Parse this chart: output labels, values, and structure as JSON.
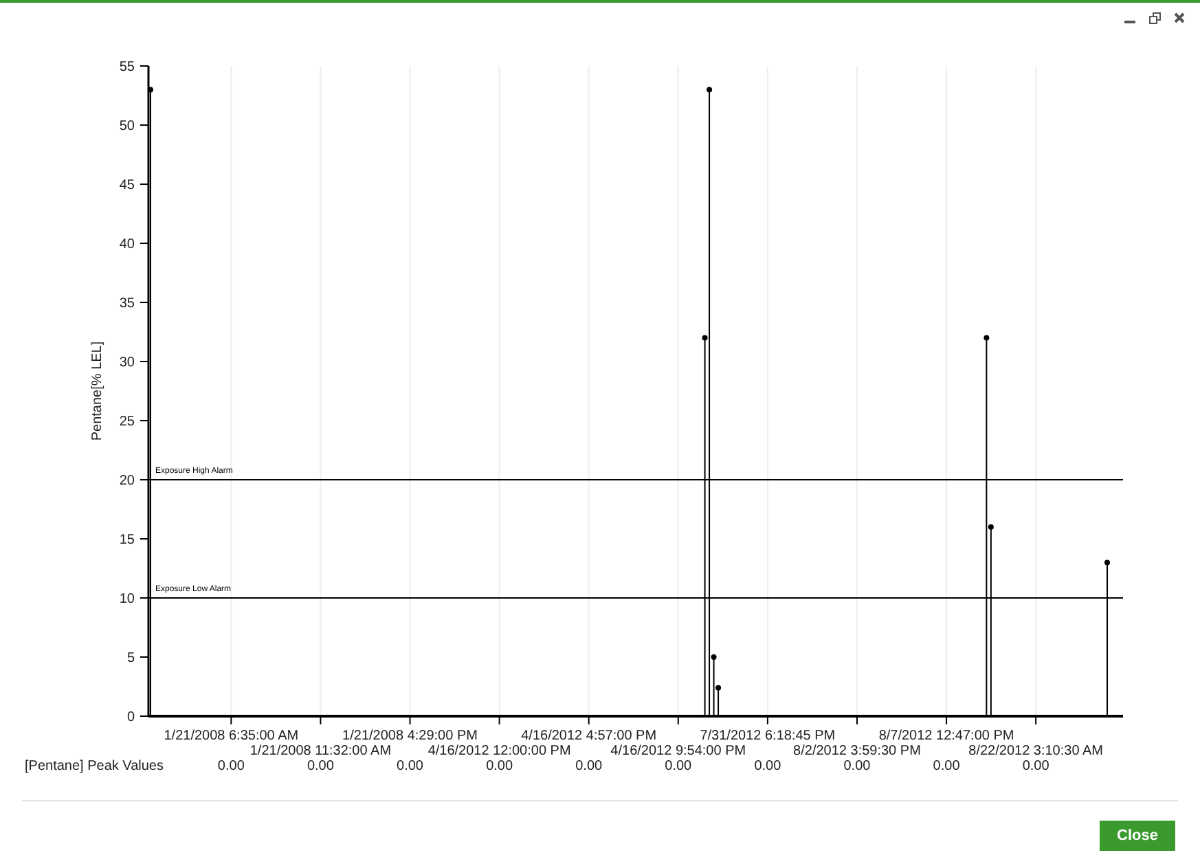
{
  "chart_data": {
    "type": "lollipop",
    "ylabel": "Pentane[% LEL]",
    "categories": [
      null,
      null,
      null,
      null,
      null,
      null,
      null,
      null,
      null,
      null,
      null,
      null,
      null,
      null,
      null,
      null,
      null,
      null,
      "1/21/2008 6:35:00 AM",
      null,
      null,
      null,
      null,
      null,
      null,
      null,
      null,
      null,
      null,
      null,
      null,
      null,
      null,
      null,
      null,
      null,
      null,
      null,
      "1/21/2008 11:32:00 AM",
      null,
      null,
      null,
      null,
      null,
      null,
      null,
      null,
      null,
      null,
      null,
      null,
      null,
      null,
      null,
      null,
      null,
      null,
      null,
      "1/21/2008 4:29:00 PM",
      null,
      null,
      null,
      null,
      null,
      null,
      null,
      null,
      null,
      null,
      null,
      null,
      null,
      null,
      null,
      null,
      null,
      null,
      null,
      "4/16/2012 12:00:00 PM",
      null,
      null,
      null,
      null,
      null,
      null,
      null,
      null,
      null,
      null,
      null,
      null,
      null,
      null,
      null,
      null,
      null,
      null,
      null,
      "4/16/2012 4:57:00 PM",
      null,
      null,
      null,
      null,
      null,
      null,
      null,
      null,
      null,
      null,
      null,
      null,
      null,
      null,
      null,
      null,
      null,
      null,
      null,
      "4/16/2012 9:54:00 PM",
      null,
      null,
      null,
      null,
      null,
      null,
      null,
      null,
      null,
      null,
      null,
      null,
      null,
      null,
      null,
      null,
      null,
      null,
      null,
      "7/31/2012 6:18:45 PM",
      null,
      null,
      null,
      null,
      null,
      null,
      null,
      null,
      null,
      null,
      null,
      null,
      null,
      null,
      null,
      null,
      null,
      null,
      null,
      "8/2/2012 3:59:30 PM",
      null,
      null,
      null,
      null,
      null,
      null,
      null,
      null,
      null,
      null,
      null,
      null,
      null,
      null,
      null,
      null,
      null,
      null,
      null,
      "8/7/2012 12:47:00 PM",
      null,
      null,
      null,
      null,
      null,
      null,
      null,
      null,
      null,
      null,
      null,
      null,
      null,
      null,
      null,
      null,
      null,
      null,
      null,
      "8/22/2012 3:10:30 AM",
      null,
      null,
      null,
      null,
      null,
      null,
      null,
      null,
      null,
      null,
      null,
      null,
      null,
      null,
      null,
      null,
      null,
      null,
      null
    ],
    "series": [
      {
        "color": "#000000",
        "values": [
          53,
          null,
          null,
          null,
          null,
          null,
          null,
          null,
          null,
          null,
          null,
          null,
          null,
          null,
          null,
          null,
          null,
          null,
          null,
          null,
          null,
          null,
          null,
          null,
          null,
          null,
          null,
          null,
          null,
          null,
          null,
          null,
          null,
          null,
          null,
          null,
          null,
          null,
          null,
          null,
          null,
          null,
          null,
          null,
          null,
          null,
          null,
          null,
          null,
          null,
          null,
          null,
          null,
          null,
          null,
          null,
          null,
          null,
          null,
          null,
          null,
          null,
          null,
          null,
          null,
          null,
          null,
          null,
          null,
          null,
          null,
          null,
          null,
          null,
          null,
          null,
          null,
          null,
          null,
          null,
          null,
          null,
          null,
          null,
          null,
          null,
          null,
          null,
          null,
          null,
          null,
          null,
          null,
          null,
          null,
          null,
          null,
          null,
          null,
          null,
          null,
          null,
          null,
          null,
          null,
          null,
          null,
          null,
          null,
          null,
          null,
          null,
          null,
          null,
          null,
          null,
          null,
          null,
          null,
          null,
          null,
          null,
          null,
          null,
          32,
          53,
          5,
          2.4,
          null,
          null,
          null,
          null,
          null,
          null,
          null,
          null,
          null,
          null,
          null,
          null,
          null,
          null,
          null,
          null,
          null,
          null,
          null,
          null,
          null,
          null,
          null,
          null,
          null,
          null,
          null,
          null,
          null,
          null,
          null,
          null,
          null,
          null,
          null,
          null,
          null,
          null,
          null,
          null,
          null,
          null,
          null,
          null,
          null,
          null,
          null,
          null,
          null,
          null,
          null,
          null,
          null,
          null,
          null,
          null,
          null,
          null,
          null,
          32,
          16,
          null,
          null,
          null,
          null,
          null,
          null,
          null,
          null,
          null,
          null,
          null,
          null,
          null,
          null,
          null,
          null,
          null,
          null,
          null,
          null,
          null,
          null,
          null,
          null,
          null,
          13,
          null,
          null,
          null
        ]
      }
    ],
    "ylim": [
      0,
      55
    ],
    "yticks": [
      0,
      5,
      10,
      15,
      20,
      25,
      30,
      35,
      40,
      45,
      50,
      55
    ],
    "grid": true,
    "marker": "circle",
    "ref_lines": [
      {
        "axis": "y",
        "value": 20,
        "label": "Exposure High Alarm",
        "color": "#000000"
      },
      {
        "axis": "y",
        "value": 10,
        "label": "Exposure Low Alarm",
        "color": "#000000"
      }
    ],
    "annotations": [
      "[Pentane] Peak Values",
      "0.00",
      "0.00",
      "0.00",
      "0.00",
      "0.00",
      "0.00",
      "0.00",
      "0.00",
      "0.00",
      "0.00",
      "Close"
    ]
  }
}
